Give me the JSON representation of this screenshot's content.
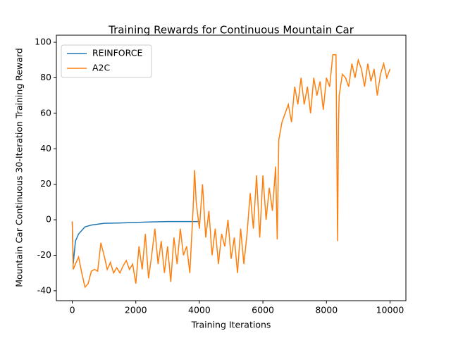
{
  "chart_data": {
    "type": "line",
    "title": "Training Rewards for Continuous Mountain Car",
    "x_label": "Training Iterations",
    "y_label": "Mountain Car Continuous 30-Iteration Training Reward",
    "xlim": [
      -500,
      10500
    ],
    "ylim": [
      -45.6,
      104
    ],
    "xticks": [
      0,
      2000,
      4000,
      6000,
      8000,
      10000
    ],
    "yticks": [
      -40,
      -20,
      0,
      20,
      40,
      60,
      80,
      100
    ],
    "grid": false,
    "legend": "upper left",
    "series": [
      {
        "name": "REINFORCE",
        "color": "#1f77b4",
        "x": [
          0,
          30,
          100,
          200,
          300,
          400,
          600,
          800,
          1000,
          1500,
          2000,
          2500,
          3000,
          3500,
          4000
        ],
        "values": [
          -1,
          -25,
          -12,
          -8,
          -6,
          -4,
          -3,
          -2.5,
          -2,
          -1.8,
          -1.5,
          -1.2,
          -1,
          -1,
          -1
        ]
      },
      {
        "name": "A2C",
        "color": "#ff7f0e",
        "x": [
          0,
          30,
          100,
          200,
          300,
          400,
          500,
          600,
          700,
          800,
          900,
          1000,
          1100,
          1200,
          1300,
          1400,
          1500,
          1600,
          1700,
          1800,
          1900,
          2000,
          2100,
          2200,
          2300,
          2400,
          2500,
          2600,
          2700,
          2800,
          2900,
          3000,
          3100,
          3200,
          3300,
          3400,
          3500,
          3600,
          3700,
          3800,
          3850,
          3900,
          4000,
          4100,
          4200,
          4300,
          4400,
          4500,
          4600,
          4700,
          4800,
          4900,
          5000,
          5100,
          5200,
          5300,
          5400,
          5500,
          5600,
          5700,
          5800,
          5900,
          6000,
          6100,
          6200,
          6300,
          6400,
          6450,
          6500,
          6600,
          6700,
          6800,
          6900,
          7000,
          7100,
          7200,
          7300,
          7400,
          7500,
          7600,
          7700,
          7800,
          7900,
          8000,
          8100,
          8200,
          8300,
          8350,
          8380,
          8400,
          8500,
          8600,
          8700,
          8800,
          8900,
          9000,
          9100,
          9200,
          9300,
          9400,
          9500,
          9600,
          9700,
          9800,
          9900,
          10000
        ],
        "values": [
          -1,
          -28,
          -25,
          -21,
          -30,
          -38,
          -36,
          -29,
          -28,
          -29,
          -13,
          -20,
          -28,
          -24,
          -30,
          -27,
          -30,
          -26,
          -23,
          -28,
          -25,
          -36,
          -15,
          -28,
          -8,
          -33,
          -20,
          -5,
          -25,
          -12,
          -30,
          -15,
          -35,
          -10,
          -25,
          -5,
          -20,
          -15,
          -30,
          5,
          28,
          10,
          -5,
          20,
          -10,
          5,
          -20,
          -5,
          -25,
          -8,
          -15,
          0,
          -22,
          -10,
          -30,
          -5,
          -25,
          -8,
          15,
          -5,
          25,
          -10,
          25,
          0,
          18,
          5,
          30,
          -11,
          45,
          55,
          60,
          65,
          55,
          75,
          65,
          80,
          65,
          75,
          60,
          80,
          70,
          78,
          62,
          80,
          75,
          93,
          93,
          -12,
          55,
          70,
          82,
          80,
          75,
          88,
          80,
          90,
          85,
          75,
          88,
          78,
          85,
          70,
          82,
          88,
          80,
          85
        ]
      }
    ]
  }
}
